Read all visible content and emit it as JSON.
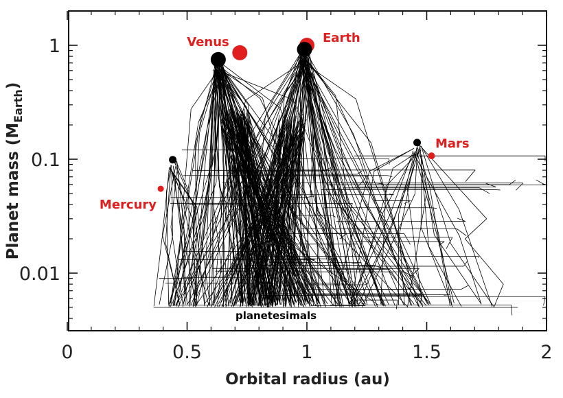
{
  "chart_data": {
    "type": "scatter",
    "xlabel": "Orbital radius (au)",
    "ylabel_main": "Planet mass  (M",
    "ylabel_sub": "Earth",
    "ylabel_close": ")",
    "xlim": [
      0,
      2
    ],
    "ylim": [
      0.003,
      2.2
    ],
    "y_scale": "log",
    "x_ticks": [
      0,
      0.5,
      1,
      1.5,
      2
    ],
    "x_tick_labels": [
      "0",
      "0.5",
      "1",
      "1.5",
      "2"
    ],
    "y_ticks": [
      0.01,
      0.1,
      1
    ],
    "y_tick_labels": [
      "0.01",
      "0.1",
      "1"
    ],
    "grid": false,
    "colors": {
      "real_planet": "#e01e1e",
      "simulated_planet": "#000000",
      "track": "#000000"
    },
    "real_planets": [
      {
        "name": "Mercury",
        "x": 0.39,
        "y": 0.055
      },
      {
        "name": "Venus",
        "x": 0.72,
        "y": 0.86
      },
      {
        "name": "Earth",
        "x": 1.0,
        "y": 1.0
      },
      {
        "name": "Mars",
        "x": 1.52,
        "y": 0.107
      }
    ],
    "simulated_planets": [
      {
        "x": 0.44,
        "y": 0.099
      },
      {
        "x": 0.63,
        "y": 0.75
      },
      {
        "x": 0.99,
        "y": 0.92
      },
      {
        "x": 1.46,
        "y": 0.14
      }
    ],
    "annotation": "planetesimals",
    "planetesimal_mass": 0.005
  }
}
